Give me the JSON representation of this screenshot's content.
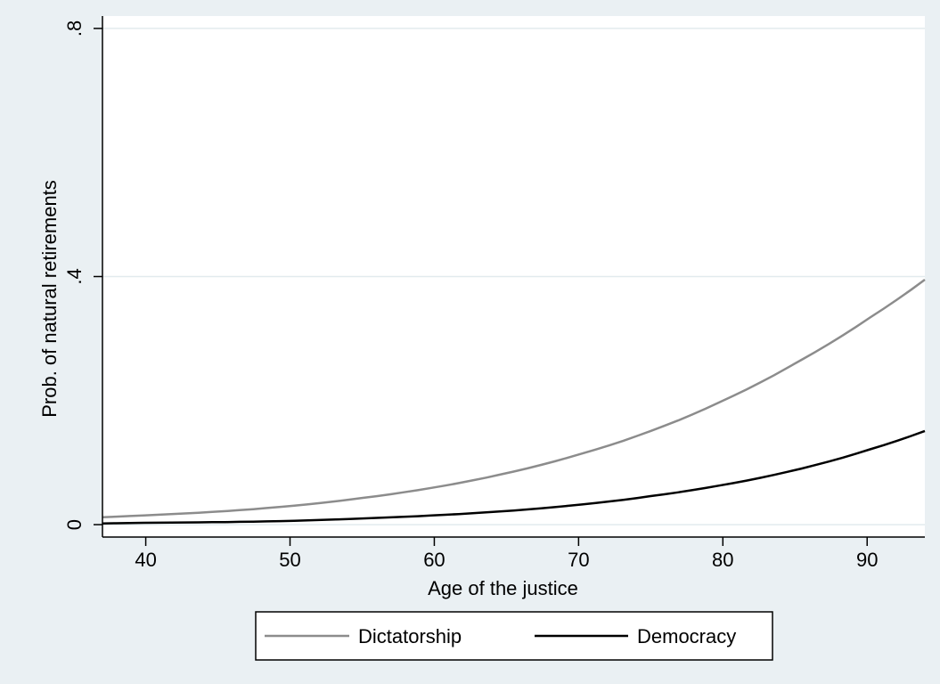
{
  "chart_data": {
    "type": "line",
    "xlabel": "Age of the justice",
    "ylabel": "Prob. of natural retirements",
    "xlim": [
      37,
      94
    ],
    "ylim": [
      -0.02,
      0.82
    ],
    "xticks": [
      40,
      50,
      60,
      70,
      80,
      90
    ],
    "xtick_labels": [
      "40",
      "50",
      "60",
      "70",
      "80",
      "90"
    ],
    "yticks": [
      0,
      0.4,
      0.8
    ],
    "ytick_labels": [
      "0",
      ".4",
      ".8"
    ],
    "grid": "horizontal",
    "legend_position": "bottom",
    "colors": {
      "outer_background": "#eaf0f3",
      "plot_background": "#ffffff",
      "grid": "#e2ebee",
      "dictatorship": "#8c8c8c",
      "democracy": "#000000"
    },
    "series": [
      {
        "name": "Dictatorship",
        "x": [
          37,
          40,
          45,
          50,
          55,
          60,
          65,
          70,
          75,
          80,
          85,
          90,
          94
        ],
        "y": [
          0.012,
          0.015,
          0.021,
          0.03,
          0.043,
          0.06,
          0.083,
          0.113,
          0.151,
          0.2,
          0.26,
          0.331,
          0.395
        ]
      },
      {
        "name": "Democracy",
        "x": [
          37,
          40,
          45,
          50,
          55,
          60,
          65,
          70,
          75,
          80,
          85,
          90,
          94
        ],
        "y": [
          0.002,
          0.003,
          0.004,
          0.006,
          0.01,
          0.015,
          0.022,
          0.032,
          0.046,
          0.064,
          0.088,
          0.12,
          0.151
        ]
      }
    ]
  }
}
